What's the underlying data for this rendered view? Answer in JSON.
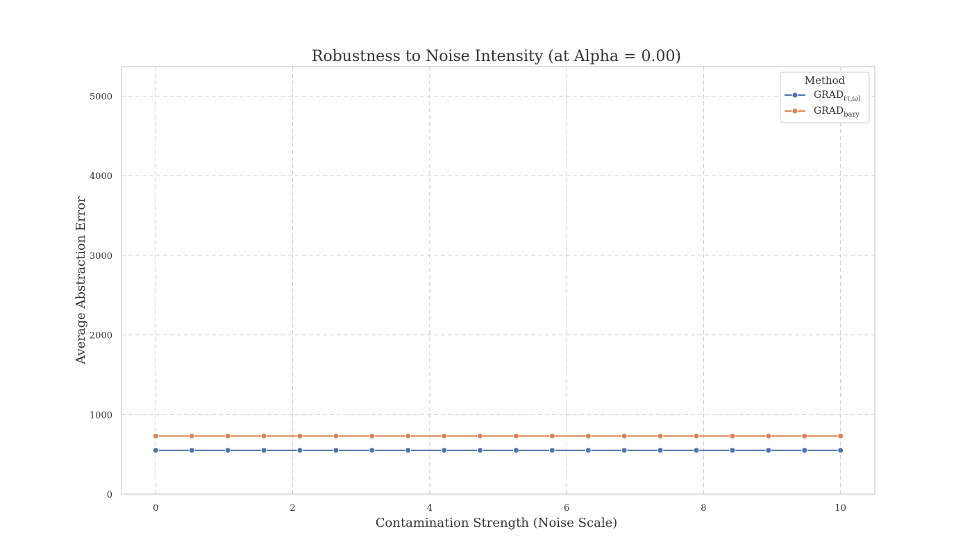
{
  "chart_data": {
    "type": "line",
    "title": "Robustness to Noise Intensity (at Alpha = 0.00)",
    "xlabel": "Contamination Strength (Noise Scale)",
    "ylabel": "Average Abstraction Error",
    "xlim": [
      -0.5,
      10.5
    ],
    "ylim": [
      0,
      5370
    ],
    "x_ticks": [
      0,
      2,
      4,
      6,
      8,
      10
    ],
    "y_ticks": [
      0,
      1000,
      2000,
      3000,
      4000,
      5000
    ],
    "grid": true,
    "legend": {
      "title": "Method",
      "placement": "top-right"
    },
    "x": [
      0,
      0.526,
      1.053,
      1.579,
      2.105,
      2.632,
      3.158,
      3.684,
      4.211,
      4.737,
      5.263,
      5.789,
      6.316,
      6.842,
      7.368,
      7.895,
      8.421,
      8.947,
      9.474,
      10
    ],
    "series": [
      {
        "name": "GRAD",
        "name_subscript": "(τ,ω)",
        "color": "#4c72b0",
        "values": [
          550,
          550,
          550,
          550,
          550,
          550,
          550,
          550,
          550,
          550,
          550,
          550,
          550,
          550,
          550,
          550,
          550,
          550,
          550,
          550
        ]
      },
      {
        "name": "GRAD",
        "name_subscript": "bary",
        "color": "#dd8452",
        "values": [
          730,
          730,
          730,
          730,
          730,
          730,
          730,
          730,
          730,
          730,
          730,
          730,
          730,
          730,
          730,
          730,
          730,
          730,
          730,
          730
        ]
      }
    ]
  }
}
